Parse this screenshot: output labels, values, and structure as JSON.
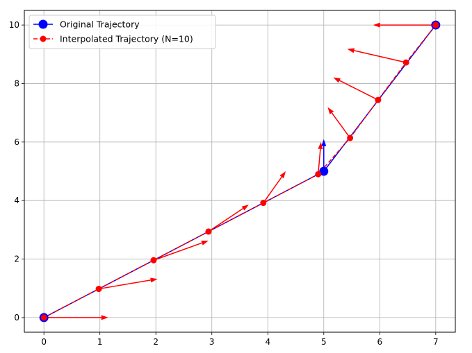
{
  "chart_data": {
    "type": "line",
    "title": "",
    "xlabel": "",
    "ylabel": "",
    "xlim": [
      -0.35,
      7.35
    ],
    "ylim": [
      -0.5,
      10.5
    ],
    "xticks": [
      0,
      1,
      2,
      3,
      4,
      5,
      6,
      7
    ],
    "yticks": [
      0,
      2,
      4,
      6,
      8,
      10
    ],
    "xtick_labels": [
      "0",
      "1",
      "2",
      "3",
      "4",
      "5",
      "6",
      "7"
    ],
    "ytick_labels": [
      "0",
      "2",
      "4",
      "6",
      "8",
      "10"
    ],
    "grid": true,
    "legend_position": "top-left",
    "series": [
      {
        "name": "Original Trajectory",
        "color": "#0000ff",
        "line_style": "solid",
        "marker": "circle",
        "x": [
          0,
          5,
          7
        ],
        "y": [
          0,
          5,
          10
        ],
        "arrows": [
          {
            "x": 5,
            "y": 5,
            "dx": 0,
            "dy": 1.1
          }
        ]
      },
      {
        "name": "Interpolated Trajectory (N=10)",
        "color": "#ff0000",
        "line_style": "dashed",
        "marker": "circle",
        "x": [
          0,
          0.98,
          1.96,
          2.94,
          3.92,
          4.9,
          5.47,
          5.97,
          6.47,
          7.0
        ],
        "y": [
          0,
          0.98,
          1.96,
          2.94,
          3.92,
          4.9,
          6.14,
          7.44,
          8.72,
          10.0
        ],
        "arrows": [
          {
            "x": 0,
            "y": 0,
            "dx": 1.15,
            "dy": 0
          },
          {
            "x": 0.98,
            "y": 0.98,
            "dx": 1.05,
            "dy": 0.34
          },
          {
            "x": 1.96,
            "y": 1.96,
            "dx": 0.98,
            "dy": 0.67
          },
          {
            "x": 2.94,
            "y": 2.94,
            "dx": 0.72,
            "dy": 0.92
          },
          {
            "x": 3.92,
            "y": 3.92,
            "dx": 0.4,
            "dy": 1.08
          },
          {
            "x": 4.9,
            "y": 4.9,
            "dx": 0.05,
            "dy": 1.1
          },
          {
            "x": 5.47,
            "y": 6.14,
            "dx": -0.4,
            "dy": 1.05
          },
          {
            "x": 5.97,
            "y": 7.44,
            "dx": -0.8,
            "dy": 0.77
          },
          {
            "x": 6.47,
            "y": 8.72,
            "dx": -1.05,
            "dy": 0.46
          },
          {
            "x": 7.0,
            "y": 10.0,
            "dx": -1.12,
            "dy": 0
          }
        ]
      }
    ]
  }
}
